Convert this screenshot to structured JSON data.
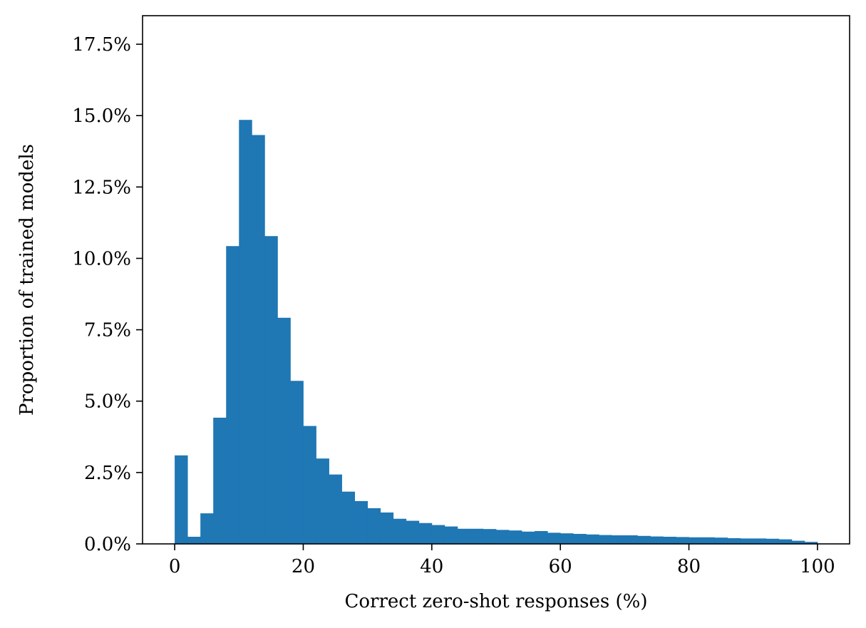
{
  "chart_data": {
    "type": "bar",
    "subtype": "histogram",
    "title": "",
    "xlabel": "Correct zero-shot responses (%)",
    "ylabel": "Proportion of trained models",
    "xlim": [
      -5,
      105
    ],
    "ylim": [
      0,
      0.185
    ],
    "bin_width": 2,
    "bin_start": 0,
    "color": "#1f77b4",
    "x_ticks": [
      {
        "value": 0,
        "label": "0"
      },
      {
        "value": 20,
        "label": "20"
      },
      {
        "value": 40,
        "label": "40"
      },
      {
        "value": 60,
        "label": "60"
      },
      {
        "value": 80,
        "label": "80"
      },
      {
        "value": 100,
        "label": "100"
      }
    ],
    "y_ticks": [
      {
        "value": 0.0,
        "label": "0.0%"
      },
      {
        "value": 0.025,
        "label": "2.5%"
      },
      {
        "value": 0.05,
        "label": "5.0%"
      },
      {
        "value": 0.075,
        "label": "7.5%"
      },
      {
        "value": 0.1,
        "label": "10.0%"
      },
      {
        "value": 0.125,
        "label": "12.5%"
      },
      {
        "value": 0.15,
        "label": "15.0%"
      },
      {
        "value": 0.175,
        "label": "17.5%"
      }
    ],
    "values": [
      0.031,
      0.0025,
      0.0107,
      0.0442,
      0.1043,
      0.1485,
      0.1432,
      0.1078,
      0.0792,
      0.0571,
      0.0413,
      0.0299,
      0.0243,
      0.0183,
      0.015,
      0.0125,
      0.011,
      0.0088,
      0.0081,
      0.0073,
      0.0066,
      0.0061,
      0.0053,
      0.0053,
      0.0052,
      0.0049,
      0.0047,
      0.0043,
      0.0045,
      0.0039,
      0.0037,
      0.0035,
      0.0033,
      0.0031,
      0.003,
      0.003,
      0.0028,
      0.0026,
      0.0025,
      0.0024,
      0.0023,
      0.0023,
      0.0022,
      0.002,
      0.0019,
      0.0019,
      0.0018,
      0.0016,
      0.0011,
      0.0007
    ],
    "grid": false,
    "legend": "none"
  }
}
